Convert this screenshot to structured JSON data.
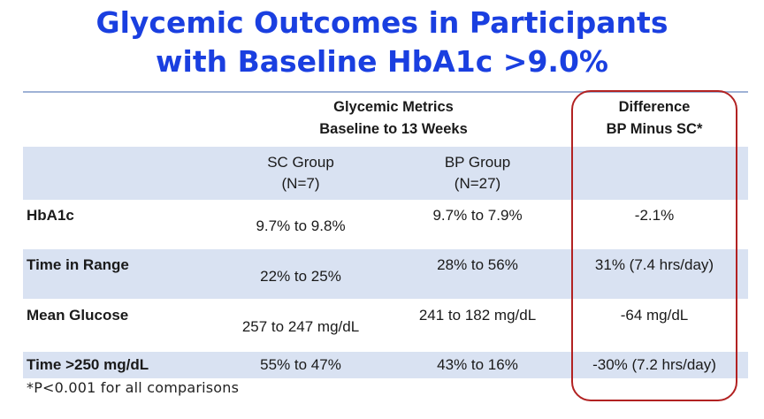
{
  "title": {
    "line1": "Glycemic Outcomes in Participants",
    "line2": "with Baseline HbA1c >9.0%"
  },
  "table": {
    "group_header": {
      "line1": "Glycemic Metrics",
      "line2": "Baseline to 13 Weeks"
    },
    "difference_header": {
      "line1": "Difference",
      "line2": "BP Minus SC*"
    },
    "columns": [
      {
        "name": "SC Group",
        "n": "(N=7)"
      },
      {
        "name": "BP Group",
        "n": "(N=27)"
      }
    ],
    "rows": [
      {
        "label": "HbA1c",
        "sc": "9.7% to 9.8%",
        "bp": "9.7% to 7.9%",
        "diff": "-2.1%"
      },
      {
        "label": "Time in Range",
        "sc": "22% to 25%",
        "bp": "28% to 56%",
        "diff": "31% (7.4 hrs/day)"
      },
      {
        "label": "Mean Glucose",
        "sc": "257 to 247 mg/dL",
        "bp": "241 to 182 mg/dL",
        "diff": "-64 mg/dL"
      },
      {
        "label": "Time >250 mg/dL",
        "sc": "55% to 47%",
        "bp": "43% to 16%",
        "diff": "-30% (7.2 hrs/day)"
      }
    ]
  },
  "footnote": "*P<0.001 for all comparisons",
  "colors": {
    "title": "#1a3fe0",
    "band": "#d9e2f2",
    "highlight_border": "#b22222"
  }
}
